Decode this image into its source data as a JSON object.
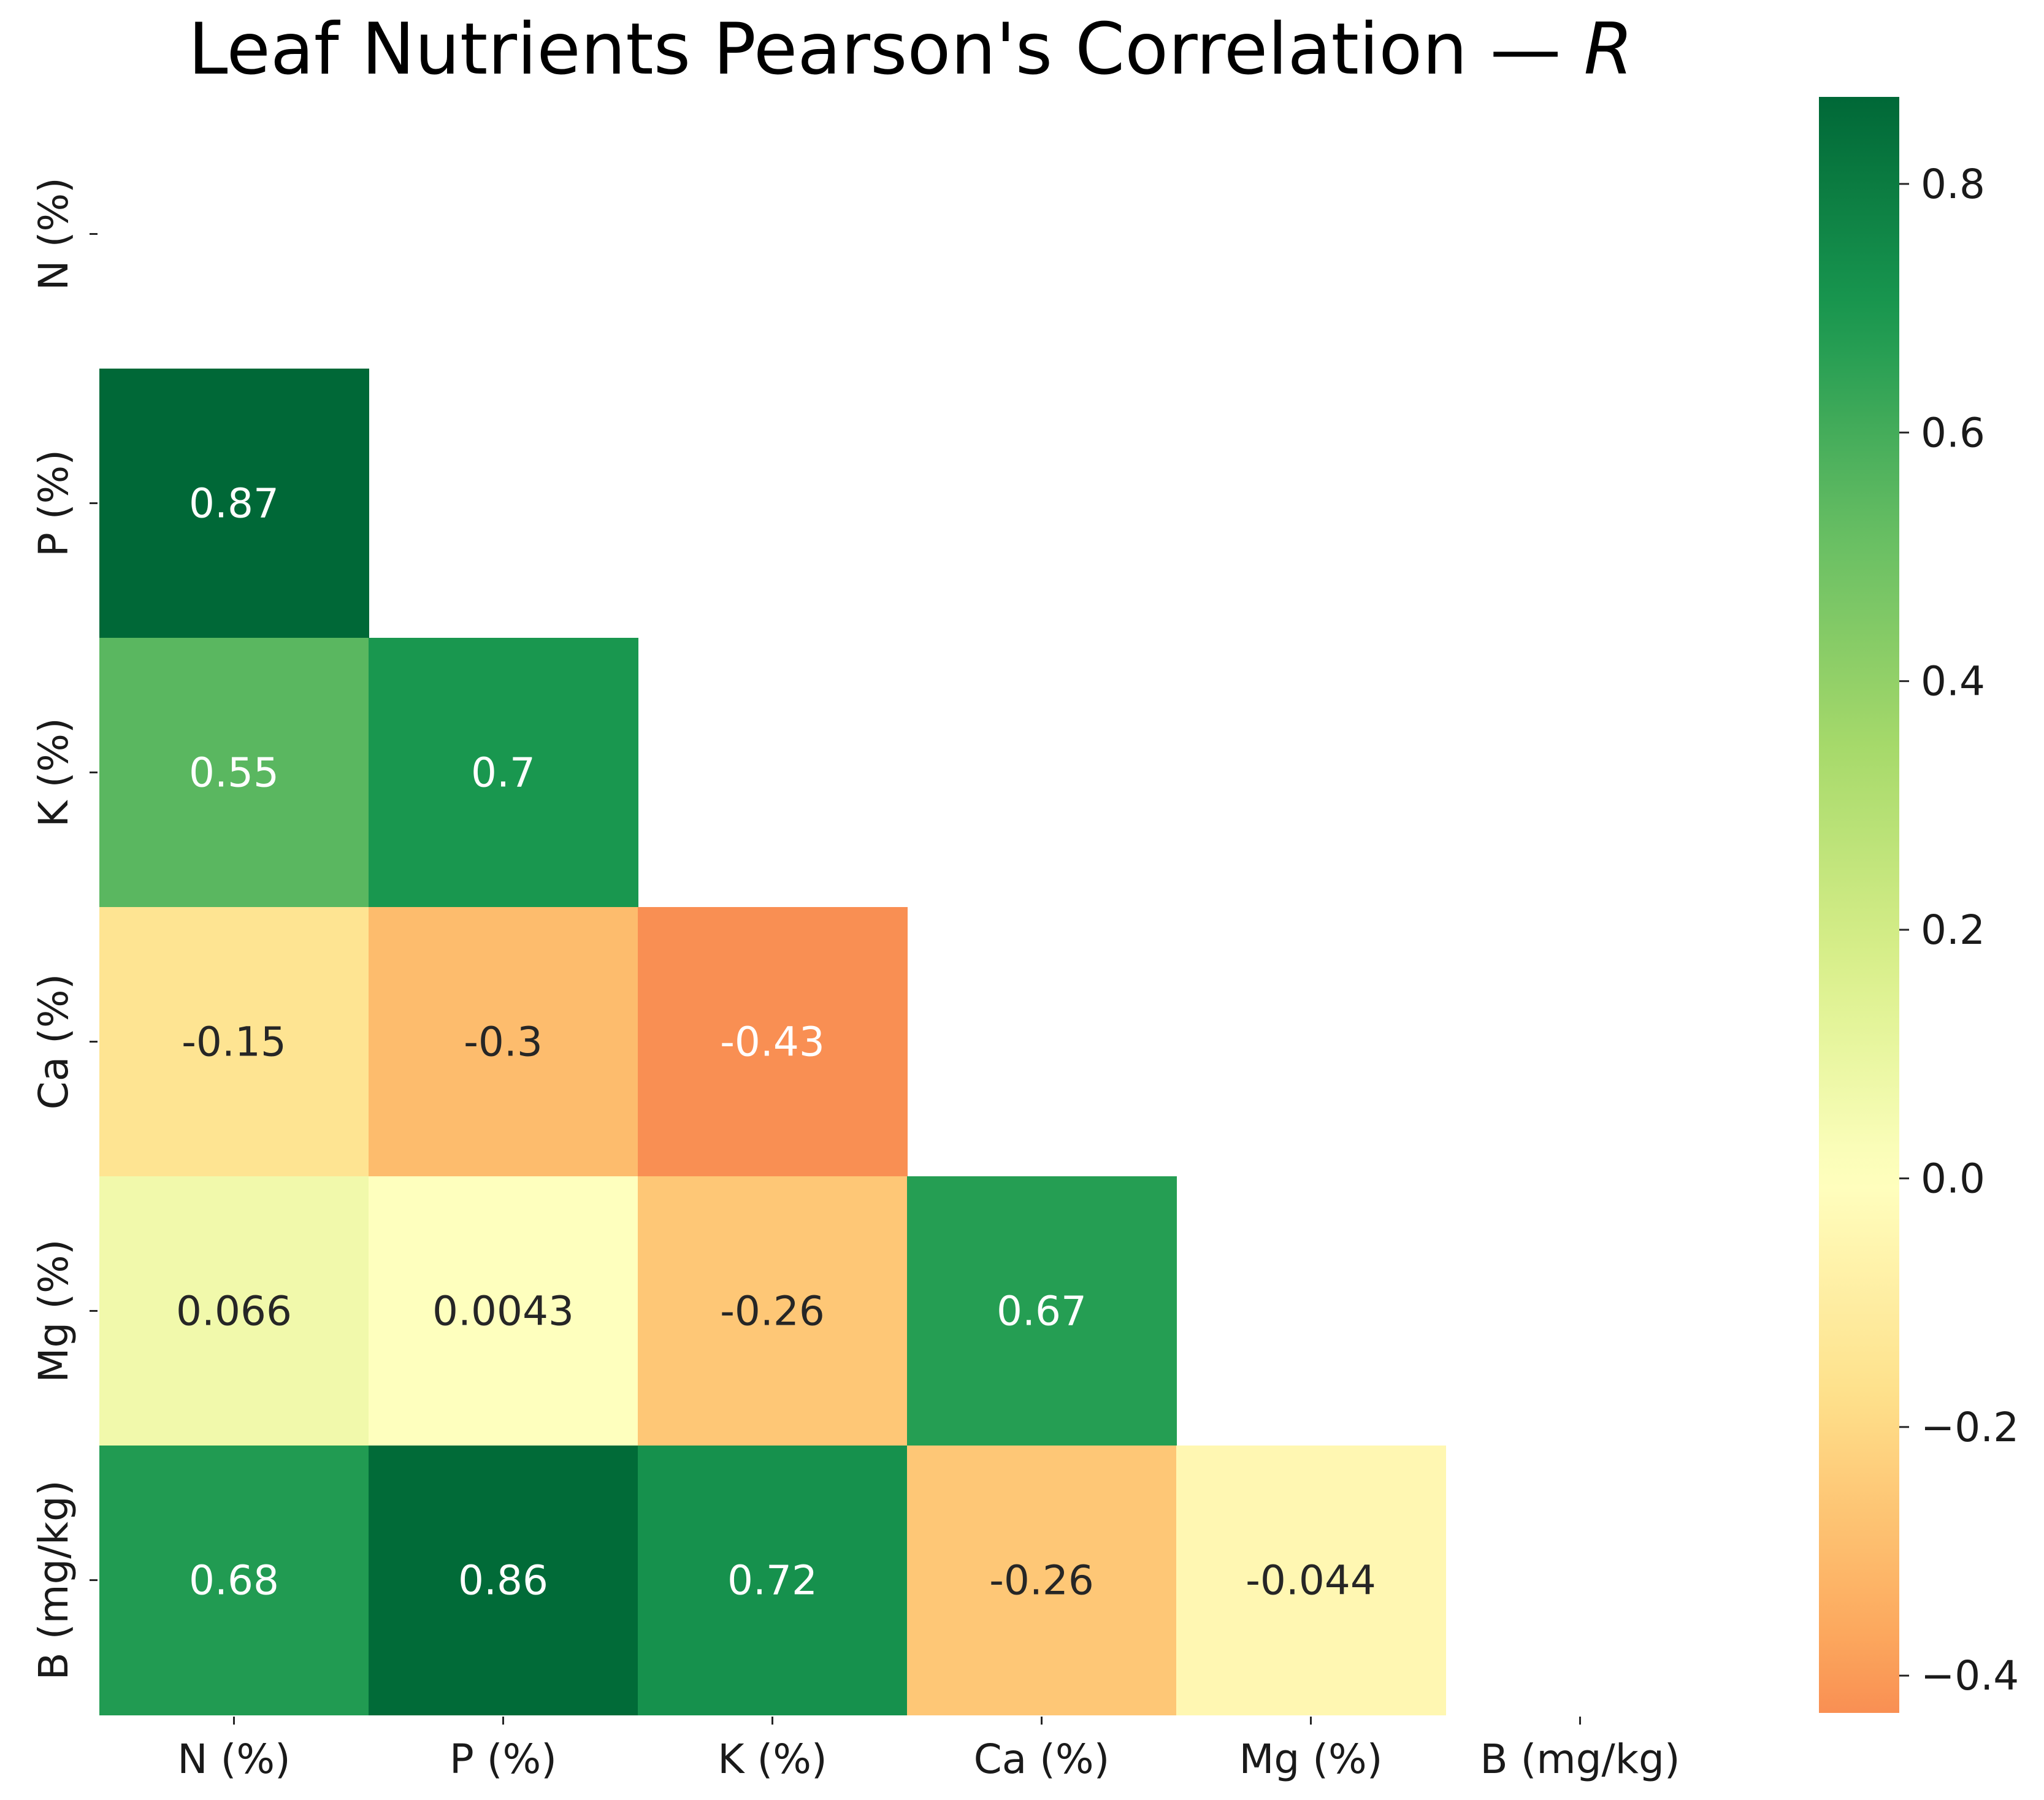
{
  "chart_data": {
    "type": "heatmap",
    "title": "Leaf Nutrients Pearson's Correlation — ",
    "title_symbol": "R",
    "row_labels": [
      "N (%)",
      "P (%)",
      "K (%)",
      "Ca (%)",
      "Mg (%)",
      "B (mg/kg)"
    ],
    "col_labels": [
      "N (%)",
      "P (%)",
      "K (%)",
      "Ca (%)",
      "Mg (%)",
      "B (mg/kg)"
    ],
    "mask": "upper-triangle-including-diagonal",
    "values": [
      [
        null,
        null,
        null,
        null,
        null,
        null
      ],
      [
        0.87,
        null,
        null,
        null,
        null,
        null
      ],
      [
        0.55,
        0.7,
        null,
        null,
        null,
        null
      ],
      [
        -0.15,
        -0.3,
        -0.43,
        null,
        null,
        null
      ],
      [
        0.066,
        0.0043,
        -0.26,
        0.67,
        null,
        null
      ],
      [
        0.68,
        0.86,
        0.72,
        -0.26,
        -0.044,
        null
      ]
    ],
    "value_labels": [
      [
        "",
        "",
        "",
        "",
        "",
        ""
      ],
      [
        "0.87",
        "",
        "",
        "",
        "",
        ""
      ],
      [
        "0.55",
        "0.7",
        "",
        "",
        "",
        ""
      ],
      [
        "-0.15",
        "-0.3",
        "-0.43",
        "",
        "",
        ""
      ],
      [
        "0.066",
        "0.0043",
        "-0.26",
        "0.67",
        "",
        ""
      ],
      [
        "0.68",
        "0.86",
        "0.72",
        "-0.26",
        "-0.044",
        ""
      ]
    ],
    "colormap": "RdYlGn",
    "colorbar": {
      "vmin": -0.43,
      "vmax": 0.87,
      "ticks": [
        0.8,
        0.6,
        0.4,
        0.2,
        0.0,
        -0.2,
        -0.4
      ],
      "tick_labels": [
        "0.8",
        "0.6",
        "0.4",
        "0.2",
        "0.0",
        "−0.2",
        "−0.4"
      ]
    },
    "xlabel": "",
    "ylabel": "",
    "grid": false
  }
}
